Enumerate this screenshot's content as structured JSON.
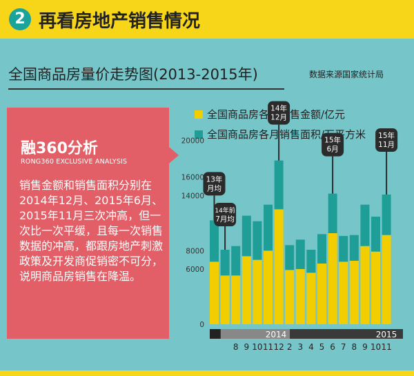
{
  "header": {
    "number": "2",
    "title": "再看房地产销售情况"
  },
  "subtitle": "全国商品房量价走势图(2013-2015年)",
  "source": "数据来源国家统计局",
  "analysis": {
    "title": "融360分析",
    "subtitle_en": "RONG360 EXCLUSIVE ANALYSIS",
    "body": "销售金额和销售面积分别在2014年12月、2015年6月、2015年11月三次冲高，但一次比一次平缓，且每一次销售数据的冲高，都跟房地产刺激政策及开发商促销密不可分，说明商品房销售在降温。"
  },
  "colors": {
    "amount": "#f2cd00",
    "area": "#1e9e96",
    "callout": "#2b2b2b",
    "axis_bar": "#3a3a3a"
  },
  "chart_data": {
    "type": "bar",
    "stacked": true,
    "categories": [
      "13年月均",
      "14年前7月均",
      "8",
      "9",
      "10",
      "11",
      "12",
      "2",
      "3",
      "4",
      "5",
      "6",
      "7",
      "8",
      "9",
      "10",
      "11"
    ],
    "year_labels": [
      "2014",
      "2015"
    ],
    "yticks": [
      "0",
      "6000",
      "8000",
      "14000",
      "16000",
      "20000"
    ],
    "ylim": [
      0,
      20000
    ],
    "series": [
      {
        "name": "全国商品房各月销售金额/亿元",
        "values": [
          6800,
          5300,
          5300,
          7400,
          7000,
          8000,
          12500,
          5900,
          6000,
          5600,
          6600,
          9900,
          6800,
          6900,
          8500,
          7900,
          9700
        ]
      },
      {
        "name": "全国商品房各月销售面积/万平方米",
        "values": [
          4500,
          2800,
          3200,
          4400,
          4200,
          5000,
          5300,
          2700,
          3200,
          2500,
          3200,
          4300,
          2800,
          2800,
          4500,
          3800,
          4400
        ]
      }
    ],
    "annotations": [
      {
        "text": "13年\n月均",
        "bar": 0
      },
      {
        "text": "14年前\n7月均",
        "bar": 1
      },
      {
        "text": "14年\n12月",
        "bar": 6
      },
      {
        "text": "15年\n6月",
        "bar": 11
      },
      {
        "text": "15年\n11月",
        "bar": 16
      }
    ]
  }
}
